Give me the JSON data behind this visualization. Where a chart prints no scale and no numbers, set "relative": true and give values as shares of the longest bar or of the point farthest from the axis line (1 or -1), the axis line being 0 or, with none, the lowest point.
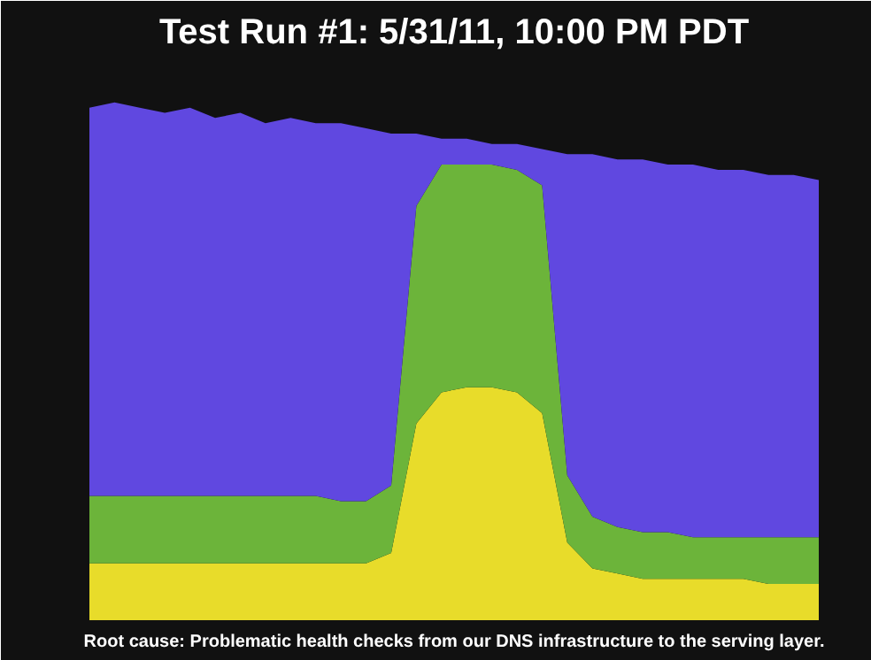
{
  "chart_data": {
    "type": "area",
    "stacked": true,
    "relative": true,
    "title": "Test Run #1: 5/31/11, 10:00 PM PDT",
    "annotations": [
      "Root cause: Problematic health checks from our DNS infrastructure to the serving layer."
    ],
    "categories": [
      null,
      null,
      null,
      null,
      null,
      null,
      null,
      null,
      null,
      null,
      null,
      null,
      null,
      null,
      null,
      null,
      null,
      null,
      null,
      null,
      null,
      null,
      null,
      null,
      null,
      null,
      null,
      null,
      null,
      null
    ],
    "series": [
      {
        "color": "#e8dc2a",
        "values": [
          0.11,
          0.11,
          0.11,
          0.11,
          0.11,
          0.11,
          0.11,
          0.11,
          0.11,
          0.11,
          0.11,
          0.11,
          0.13,
          0.38,
          0.44,
          0.45,
          0.45,
          0.44,
          0.4,
          0.15,
          0.1,
          0.09,
          0.08,
          0.08,
          0.08,
          0.08,
          0.08,
          0.07,
          0.07,
          0.07
        ]
      },
      {
        "color": "#6cb43a",
        "values": [
          0.13,
          0.13,
          0.13,
          0.13,
          0.13,
          0.13,
          0.13,
          0.13,
          0.13,
          0.13,
          0.12,
          0.12,
          0.13,
          0.42,
          0.44,
          0.43,
          0.43,
          0.43,
          0.44,
          0.13,
          0.1,
          0.09,
          0.09,
          0.09,
          0.08,
          0.08,
          0.08,
          0.09,
          0.09,
          0.09
        ]
      },
      {
        "color": "#6048e0",
        "values": [
          0.75,
          0.76,
          0.75,
          0.74,
          0.75,
          0.73,
          0.74,
          0.72,
          0.73,
          0.72,
          0.73,
          0.72,
          0.68,
          0.14,
          0.05,
          0.05,
          0.04,
          0.05,
          0.07,
          0.62,
          0.7,
          0.71,
          0.72,
          0.71,
          0.72,
          0.71,
          0.71,
          0.7,
          0.7,
          0.69
        ]
      }
    ]
  }
}
